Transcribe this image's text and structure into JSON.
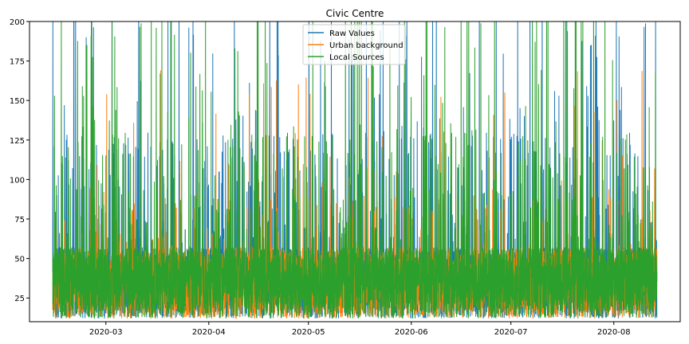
{
  "chart_data": {
    "type": "line",
    "title": "Civic Centre",
    "xlabel": "",
    "ylabel": "",
    "x_start": "2020-02-14",
    "x_end": "2020-08-14",
    "xlim": [
      "2020-02-07",
      "2020-08-21"
    ],
    "ylim": [
      10,
      200
    ],
    "y_ticks": [
      25,
      50,
      75,
      100,
      125,
      150,
      175,
      200
    ],
    "x_ticks": [
      {
        "date": "2020-03-01",
        "label": "2020-03"
      },
      {
        "date": "2020-04-01",
        "label": "2020-04"
      },
      {
        "date": "2020-05-01",
        "label": "2020-05"
      },
      {
        "date": "2020-06-01",
        "label": "2020-06"
      },
      {
        "date": "2020-07-01",
        "label": "2020-07"
      },
      {
        "date": "2020-08-01",
        "label": "2020-08"
      }
    ],
    "grid": false,
    "legend_position": "top-center",
    "series": [
      {
        "name": "Raw Values",
        "color": "#1f77b4",
        "style": "dense-spiky",
        "typical_range": [
          10,
          200
        ]
      },
      {
        "name": "Urban background",
        "color": "#ff7f0e",
        "style": "dense-spiky",
        "typical_range": [
          10,
          165
        ]
      },
      {
        "name": "Local Sources",
        "color": "#2ca02c",
        "style": "dense-spiky",
        "typical_range": [
          10,
          200
        ]
      }
    ]
  }
}
